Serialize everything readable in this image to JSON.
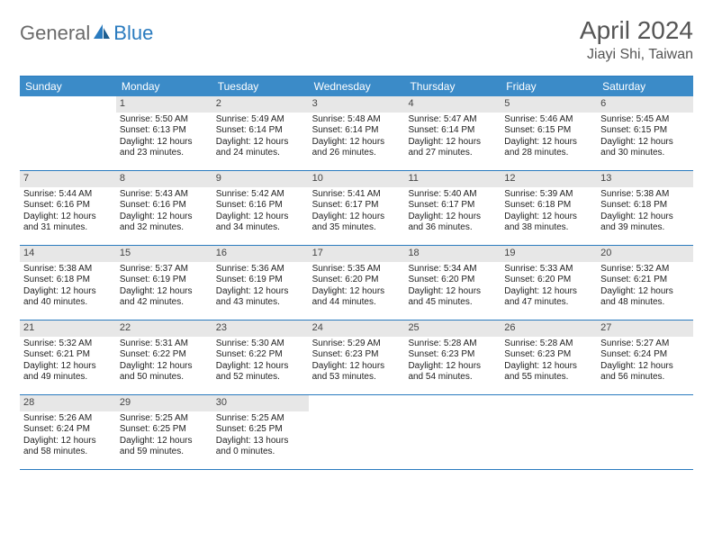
{
  "logo": {
    "part1": "General",
    "part2": "Blue"
  },
  "title": "April 2024",
  "location": "Jiayi Shi, Taiwan",
  "colors": {
    "header_bg": "#3b8bc8",
    "border": "#2a7bbf",
    "daynum_bg": "#e7e7e7",
    "text": "#222222",
    "muted": "#555555",
    "white": "#ffffff"
  },
  "daysOfWeek": [
    "Sunday",
    "Monday",
    "Tuesday",
    "Wednesday",
    "Thursday",
    "Friday",
    "Saturday"
  ],
  "weeks": [
    [
      null,
      {
        "n": "1",
        "sr": "Sunrise: 5:50 AM",
        "ss": "Sunset: 6:13 PM",
        "d1": "Daylight: 12 hours",
        "d2": "and 23 minutes."
      },
      {
        "n": "2",
        "sr": "Sunrise: 5:49 AM",
        "ss": "Sunset: 6:14 PM",
        "d1": "Daylight: 12 hours",
        "d2": "and 24 minutes."
      },
      {
        "n": "3",
        "sr": "Sunrise: 5:48 AM",
        "ss": "Sunset: 6:14 PM",
        "d1": "Daylight: 12 hours",
        "d2": "and 26 minutes."
      },
      {
        "n": "4",
        "sr": "Sunrise: 5:47 AM",
        "ss": "Sunset: 6:14 PM",
        "d1": "Daylight: 12 hours",
        "d2": "and 27 minutes."
      },
      {
        "n": "5",
        "sr": "Sunrise: 5:46 AM",
        "ss": "Sunset: 6:15 PM",
        "d1": "Daylight: 12 hours",
        "d2": "and 28 minutes."
      },
      {
        "n": "6",
        "sr": "Sunrise: 5:45 AM",
        "ss": "Sunset: 6:15 PM",
        "d1": "Daylight: 12 hours",
        "d2": "and 30 minutes."
      }
    ],
    [
      {
        "n": "7",
        "sr": "Sunrise: 5:44 AM",
        "ss": "Sunset: 6:16 PM",
        "d1": "Daylight: 12 hours",
        "d2": "and 31 minutes."
      },
      {
        "n": "8",
        "sr": "Sunrise: 5:43 AM",
        "ss": "Sunset: 6:16 PM",
        "d1": "Daylight: 12 hours",
        "d2": "and 32 minutes."
      },
      {
        "n": "9",
        "sr": "Sunrise: 5:42 AM",
        "ss": "Sunset: 6:16 PM",
        "d1": "Daylight: 12 hours",
        "d2": "and 34 minutes."
      },
      {
        "n": "10",
        "sr": "Sunrise: 5:41 AM",
        "ss": "Sunset: 6:17 PM",
        "d1": "Daylight: 12 hours",
        "d2": "and 35 minutes."
      },
      {
        "n": "11",
        "sr": "Sunrise: 5:40 AM",
        "ss": "Sunset: 6:17 PM",
        "d1": "Daylight: 12 hours",
        "d2": "and 36 minutes."
      },
      {
        "n": "12",
        "sr": "Sunrise: 5:39 AM",
        "ss": "Sunset: 6:18 PM",
        "d1": "Daylight: 12 hours",
        "d2": "and 38 minutes."
      },
      {
        "n": "13",
        "sr": "Sunrise: 5:38 AM",
        "ss": "Sunset: 6:18 PM",
        "d1": "Daylight: 12 hours",
        "d2": "and 39 minutes."
      }
    ],
    [
      {
        "n": "14",
        "sr": "Sunrise: 5:38 AM",
        "ss": "Sunset: 6:18 PM",
        "d1": "Daylight: 12 hours",
        "d2": "and 40 minutes."
      },
      {
        "n": "15",
        "sr": "Sunrise: 5:37 AM",
        "ss": "Sunset: 6:19 PM",
        "d1": "Daylight: 12 hours",
        "d2": "and 42 minutes."
      },
      {
        "n": "16",
        "sr": "Sunrise: 5:36 AM",
        "ss": "Sunset: 6:19 PM",
        "d1": "Daylight: 12 hours",
        "d2": "and 43 minutes."
      },
      {
        "n": "17",
        "sr": "Sunrise: 5:35 AM",
        "ss": "Sunset: 6:20 PM",
        "d1": "Daylight: 12 hours",
        "d2": "and 44 minutes."
      },
      {
        "n": "18",
        "sr": "Sunrise: 5:34 AM",
        "ss": "Sunset: 6:20 PM",
        "d1": "Daylight: 12 hours",
        "d2": "and 45 minutes."
      },
      {
        "n": "19",
        "sr": "Sunrise: 5:33 AM",
        "ss": "Sunset: 6:20 PM",
        "d1": "Daylight: 12 hours",
        "d2": "and 47 minutes."
      },
      {
        "n": "20",
        "sr": "Sunrise: 5:32 AM",
        "ss": "Sunset: 6:21 PM",
        "d1": "Daylight: 12 hours",
        "d2": "and 48 minutes."
      }
    ],
    [
      {
        "n": "21",
        "sr": "Sunrise: 5:32 AM",
        "ss": "Sunset: 6:21 PM",
        "d1": "Daylight: 12 hours",
        "d2": "and 49 minutes."
      },
      {
        "n": "22",
        "sr": "Sunrise: 5:31 AM",
        "ss": "Sunset: 6:22 PM",
        "d1": "Daylight: 12 hours",
        "d2": "and 50 minutes."
      },
      {
        "n": "23",
        "sr": "Sunrise: 5:30 AM",
        "ss": "Sunset: 6:22 PM",
        "d1": "Daylight: 12 hours",
        "d2": "and 52 minutes."
      },
      {
        "n": "24",
        "sr": "Sunrise: 5:29 AM",
        "ss": "Sunset: 6:23 PM",
        "d1": "Daylight: 12 hours",
        "d2": "and 53 minutes."
      },
      {
        "n": "25",
        "sr": "Sunrise: 5:28 AM",
        "ss": "Sunset: 6:23 PM",
        "d1": "Daylight: 12 hours",
        "d2": "and 54 minutes."
      },
      {
        "n": "26",
        "sr": "Sunrise: 5:28 AM",
        "ss": "Sunset: 6:23 PM",
        "d1": "Daylight: 12 hours",
        "d2": "and 55 minutes."
      },
      {
        "n": "27",
        "sr": "Sunrise: 5:27 AM",
        "ss": "Sunset: 6:24 PM",
        "d1": "Daylight: 12 hours",
        "d2": "and 56 minutes."
      }
    ],
    [
      {
        "n": "28",
        "sr": "Sunrise: 5:26 AM",
        "ss": "Sunset: 6:24 PM",
        "d1": "Daylight: 12 hours",
        "d2": "and 58 minutes."
      },
      {
        "n": "29",
        "sr": "Sunrise: 5:25 AM",
        "ss": "Sunset: 6:25 PM",
        "d1": "Daylight: 12 hours",
        "d2": "and 59 minutes."
      },
      {
        "n": "30",
        "sr": "Sunrise: 5:25 AM",
        "ss": "Sunset: 6:25 PM",
        "d1": "Daylight: 13 hours",
        "d2": "and 0 minutes."
      },
      null,
      null,
      null,
      null
    ]
  ]
}
